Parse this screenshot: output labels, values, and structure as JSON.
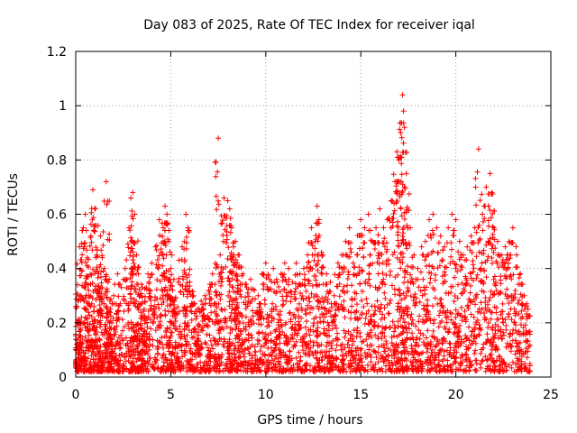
{
  "chart_data": {
    "type": "scatter",
    "title": "Day 083 of 2025, Rate Of TEC Index for receiver iqal",
    "xlabel": "GPS time / hours",
    "ylabel": "ROTI / TECUs",
    "xlim": [
      0,
      25
    ],
    "ylim": [
      0,
      1.2
    ],
    "xticks": [
      0,
      5,
      10,
      15,
      20,
      25
    ],
    "xtick_labels": [
      "0",
      "5",
      "10",
      "15",
      "20",
      "25"
    ],
    "yticks": [
      0,
      0.2,
      0.4,
      0.6,
      0.8,
      1.0,
      1.2
    ],
    "ytick_labels": [
      "0",
      "0.2",
      "0.4",
      "0.6",
      "0.8",
      "1",
      "1.2"
    ],
    "grid": true,
    "marker": "+",
    "color": "#ff0000",
    "series": [
      {
        "name": "ROTI",
        "x": [
          0.05,
          0.1,
          0.2,
          0.3,
          0.4,
          0.5,
          0.6,
          0.7,
          0.8,
          0.9,
          1.0,
          1.1,
          1.2,
          1.3,
          1.4,
          1.5,
          1.6,
          1.7,
          1.8,
          1.9,
          2.0,
          2.2,
          2.4,
          2.6,
          2.8,
          2.9,
          3.0,
          3.1,
          3.2,
          3.3,
          3.4,
          3.5,
          3.6,
          3.8,
          4.0,
          4.2,
          4.4,
          4.6,
          4.7,
          4.8,
          4.9,
          5.0,
          5.1,
          5.2,
          5.4,
          5.6,
          5.8,
          5.9,
          6.0,
          6.2,
          6.4,
          6.6,
          6.8,
          7.0,
          7.2,
          7.4,
          7.5,
          7.6,
          7.8,
          8.0,
          8.1,
          8.2,
          8.3,
          8.4,
          8.5,
          8.6,
          8.8,
          9.0,
          9.2,
          9.4,
          9.6,
          9.8,
          10.0,
          10.2,
          10.4,
          10.6,
          10.8,
          11.0,
          11.2,
          11.4,
          11.6,
          11.8,
          12.0,
          12.2,
          12.4,
          12.6,
          12.7,
          12.8,
          13.0,
          13.2,
          13.4,
          13.6,
          13.8,
          14.0,
          14.2,
          14.4,
          14.6,
          14.8,
          15.0,
          15.2,
          15.4,
          15.6,
          15.8,
          16.0,
          16.2,
          16.4,
          16.6,
          16.8,
          16.9,
          17.0,
          17.1,
          17.2,
          17.25,
          17.3,
          17.4,
          17.6,
          17.8,
          18.0,
          18.2,
          18.4,
          18.6,
          18.8,
          19.0,
          19.2,
          19.4,
          19.6,
          19.8,
          20.0,
          20.2,
          20.4,
          20.6,
          20.8,
          21.0,
          21.2,
          21.4,
          21.6,
          21.8,
          21.9,
          22.0,
          22.2,
          22.4,
          22.6,
          22.8,
          23.0,
          23.2,
          23.4,
          23.6,
          23.8
        ],
        "y": [
          0.12,
          0.34,
          0.48,
          0.22,
          0.55,
          0.6,
          0.41,
          0.3,
          0.52,
          0.69,
          0.62,
          0.45,
          0.38,
          0.52,
          0.44,
          0.4,
          0.72,
          0.35,
          0.28,
          0.2,
          0.3,
          0.38,
          0.33,
          0.4,
          0.55,
          0.66,
          0.68,
          0.6,
          0.45,
          0.38,
          0.3,
          0.33,
          0.25,
          0.38,
          0.42,
          0.48,
          0.58,
          0.55,
          0.63,
          0.6,
          0.5,
          0.4,
          0.32,
          0.28,
          0.35,
          0.48,
          0.6,
          0.55,
          0.35,
          0.3,
          0.25,
          0.28,
          0.3,
          0.32,
          0.38,
          0.3,
          0.88,
          0.45,
          0.66,
          0.65,
          0.62,
          0.55,
          0.48,
          0.5,
          0.42,
          0.45,
          0.38,
          0.33,
          0.36,
          0.32,
          0.3,
          0.38,
          0.42,
          0.36,
          0.4,
          0.35,
          0.38,
          0.42,
          0.4,
          0.35,
          0.42,
          0.38,
          0.4,
          0.45,
          0.55,
          0.5,
          0.63,
          0.58,
          0.45,
          0.38,
          0.35,
          0.3,
          0.42,
          0.45,
          0.5,
          0.55,
          0.42,
          0.45,
          0.58,
          0.55,
          0.6,
          0.5,
          0.55,
          0.62,
          0.55,
          0.58,
          0.65,
          0.72,
          0.83,
          0.8,
          0.9,
          1.04,
          0.98,
          0.92,
          0.75,
          0.55,
          0.45,
          0.4,
          0.48,
          0.5,
          0.58,
          0.6,
          0.55,
          0.52,
          0.48,
          0.55,
          0.6,
          0.58,
          0.5,
          0.45,
          0.48,
          0.52,
          0.55,
          0.84,
          0.6,
          0.7,
          0.75,
          0.68,
          0.55,
          0.5,
          0.45,
          0.48,
          0.5,
          0.55,
          0.45,
          0.38,
          0.3,
          0.25
        ]
      }
    ]
  }
}
